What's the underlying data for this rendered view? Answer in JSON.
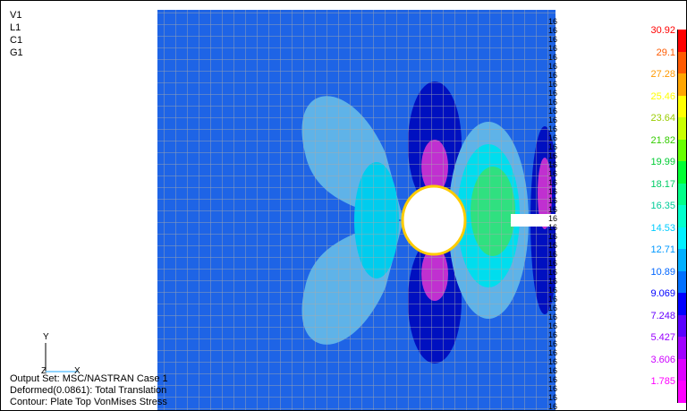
{
  "view_labels": [
    "V1",
    "L1",
    "C1",
    "G1"
  ],
  "legend": {
    "values": [
      "30.92",
      "29.1",
      "27.28",
      "25.46",
      "23.64",
      "21.82",
      "19.99",
      "18.17",
      "16.35",
      "14.53",
      "12.71",
      "10.89",
      "9.069",
      "7.248",
      "5.427",
      "3.606",
      "1.785"
    ],
    "colors": [
      "#ff0000",
      "#ff5a00",
      "#ffa500",
      "#ffff00",
      "#c8ff00",
      "#66ff00",
      "#00ff33",
      "#00ff88",
      "#00ffcc",
      "#00f0ff",
      "#00b0ff",
      "#0070ff",
      "#0000ff",
      "#5a00ff",
      "#a000ff",
      "#dd00ff",
      "#ff00ff"
    ],
    "text_colors": [
      "#ff0000",
      "#ff5a00",
      "#ff9900",
      "#ffff00",
      "#99cc00",
      "#33cc00",
      "#00cc33",
      "#00cc66",
      "#00cc99",
      "#00ccff",
      "#0099ff",
      "#0066ff",
      "#0000ff",
      "#6600ff",
      "#9900ff",
      "#cc00ff",
      "#ff00ff"
    ]
  },
  "axis": {
    "y": "Y",
    "z": "Z",
    "x": "X"
  },
  "info": {
    "output_set": "Output Set: MSC/NASTRAN Case 1",
    "deformed": "Deformed(0.0861): Total Translation",
    "contour": "Contour: Plate Top VonMises Stress"
  },
  "edge_marker": "16"
}
